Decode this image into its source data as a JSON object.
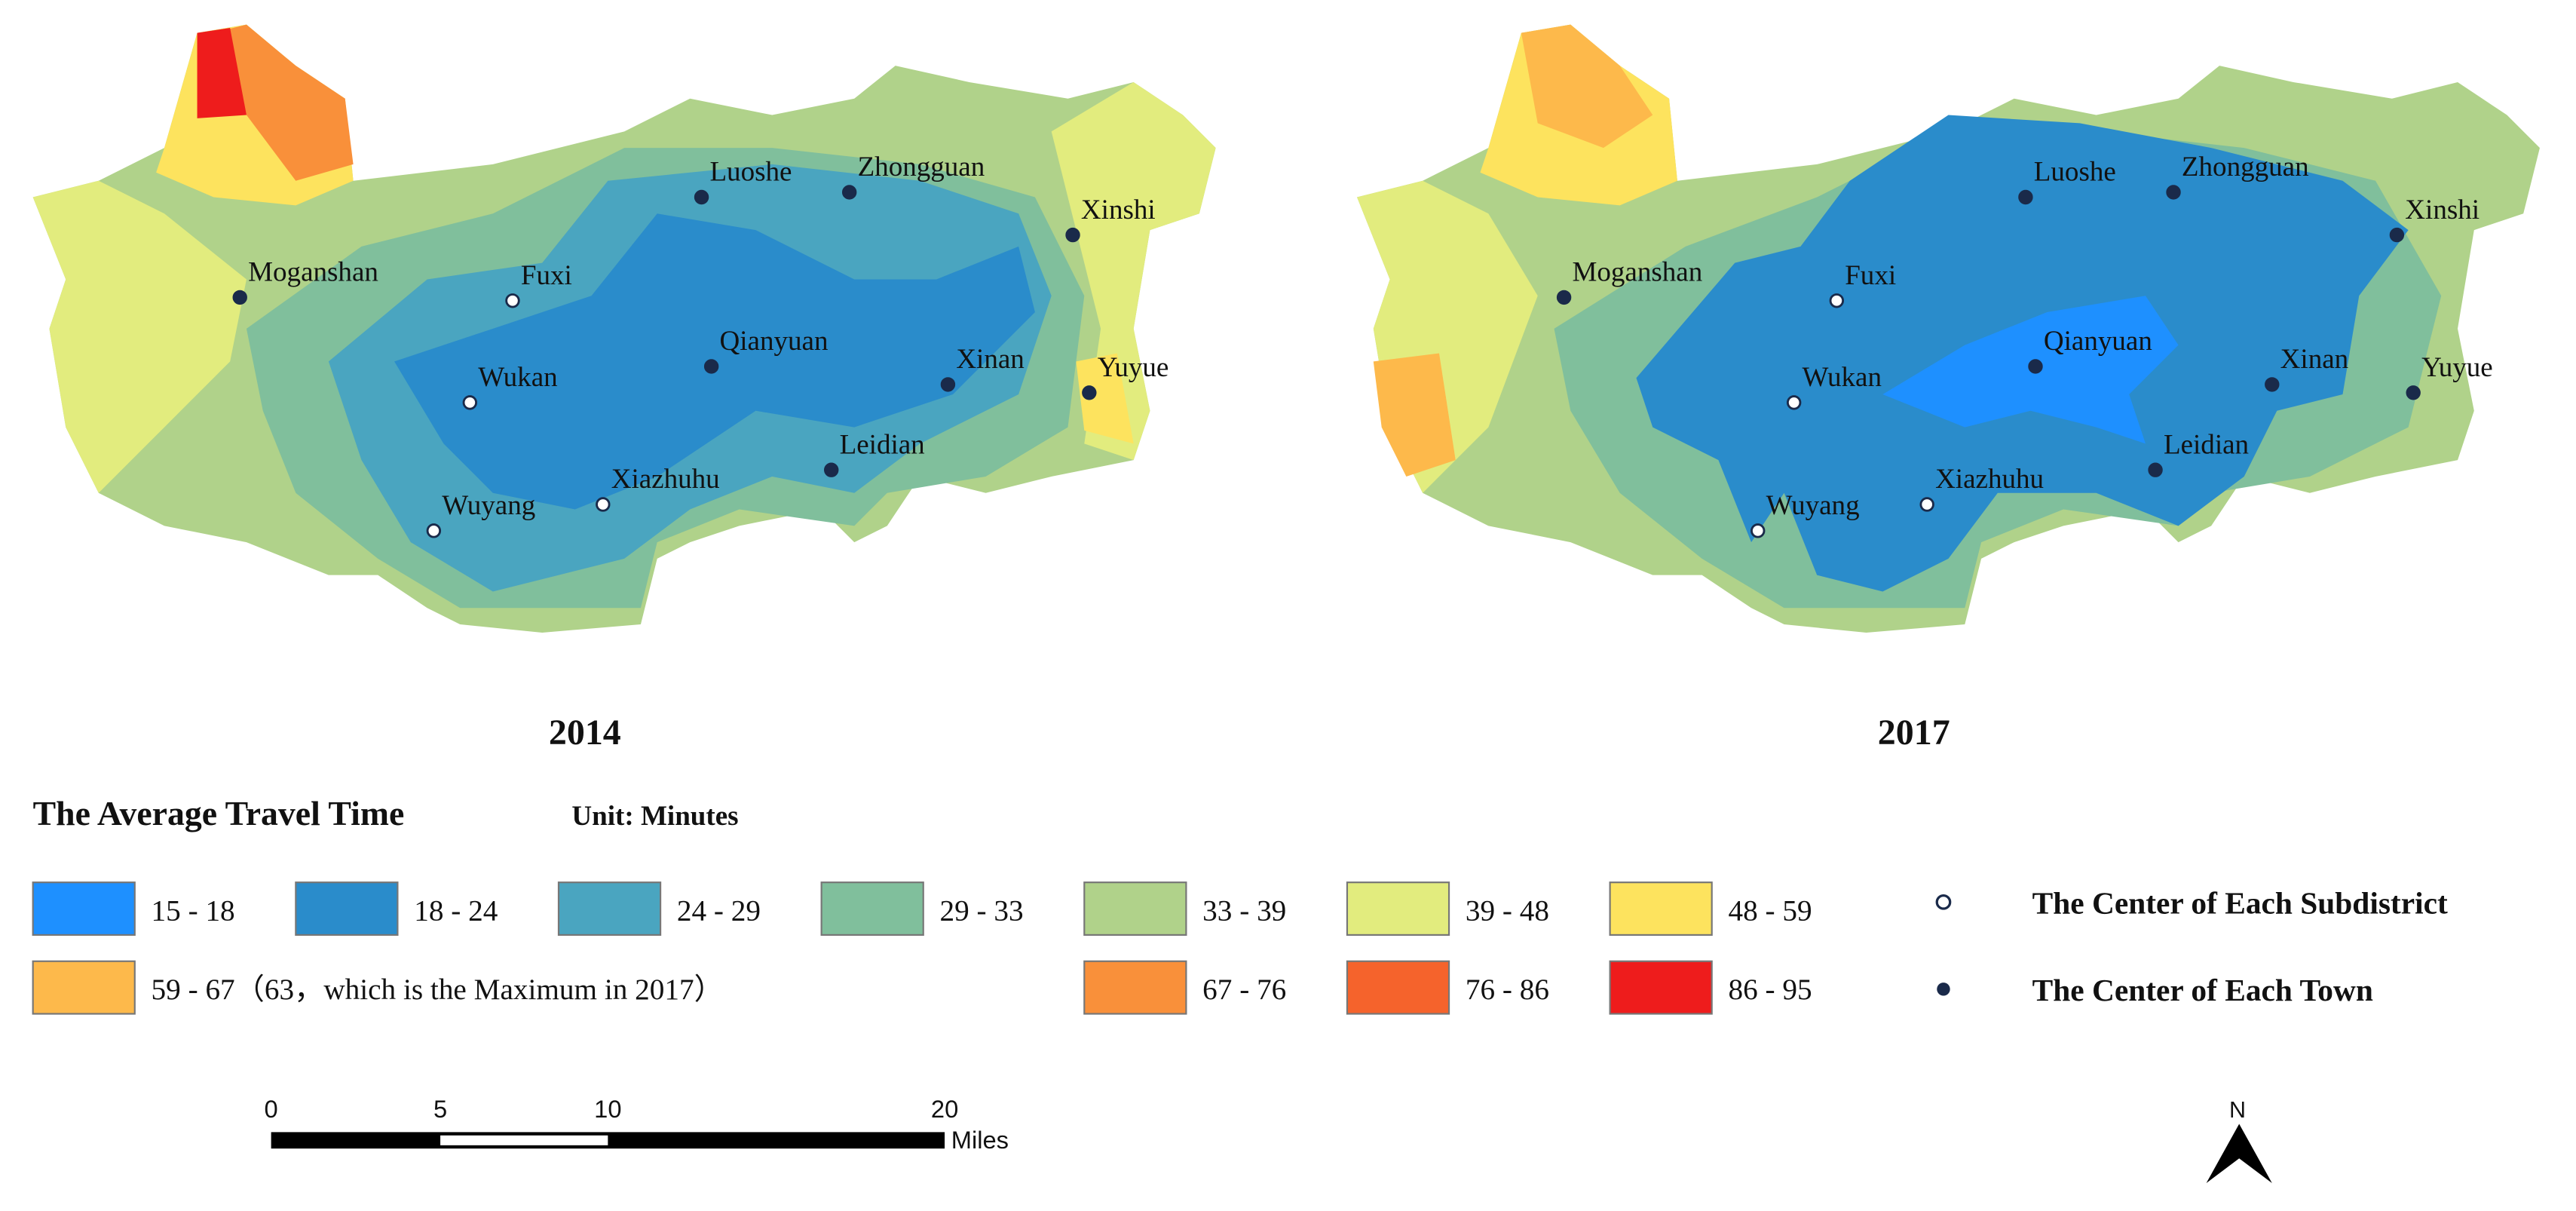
{
  "maps": [
    {
      "year": "2014",
      "places": [
        "Luoshe",
        "Zhongguan",
        "Xinshi",
        "Moganshan",
        "Fuxi",
        "Qianyuan",
        "Xinan",
        "Yuyue",
        "Wukan",
        "Leidian",
        "Xiazhuhu",
        "Wuyang"
      ]
    },
    {
      "year": "2017",
      "places": [
        "Luoshe",
        "Zhongguan",
        "Xinshi",
        "Moganshan",
        "Fuxi",
        "Qianyuan",
        "Xinan",
        "Yuyue",
        "Wukan",
        "Leidian",
        "Xiazhuhu",
        "Wuyang"
      ]
    }
  ],
  "legend": {
    "title": "The Average Travel Time",
    "unit": "Unit: Minutes",
    "items": [
      {
        "label": "15 - 18",
        "color": "#1e90ff"
      },
      {
        "label": "18 - 24",
        "color": "#2a8ccb"
      },
      {
        "label": "24 - 29",
        "color": "#4aa5c0"
      },
      {
        "label": "29 - 33",
        "color": "#80bf9c"
      },
      {
        "label": "33 - 39",
        "color": "#b0d28a"
      },
      {
        "label": "39 - 48",
        "color": "#e2ec7e"
      },
      {
        "label": "48 - 59",
        "color": "#fde35e"
      },
      {
        "label": "59 - 67（63，which is the Maximum in 2017）",
        "color": "#fdb94b"
      },
      {
        "label": "67 - 76",
        "color": "#f9903a"
      },
      {
        "label": "76 - 86",
        "color": "#f5632c"
      },
      {
        "label": "86 - 95",
        "color": "#ee1c1c"
      }
    ]
  },
  "point_legend": [
    "The Center of Each Subdistrict",
    "The Center of Each Town"
  ],
  "scale_bar": {
    "ticks": [
      "0",
      "5",
      "10",
      "20"
    ],
    "unit": "Miles"
  },
  "north": "N"
}
